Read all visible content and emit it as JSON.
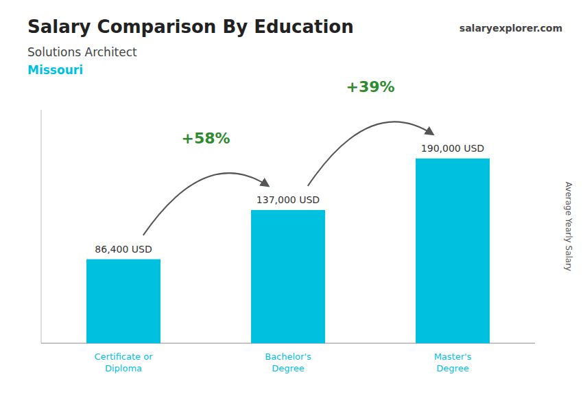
{
  "chart_data": {
    "type": "bar",
    "title": "Salary Comparison By Education",
    "subtitle": [
      "Solutions Architect",
      "Missouri"
    ],
    "categories": [
      "Certificate or\nDiploma",
      "Bachelor's\nDegree",
      "Master's\nDegree"
    ],
    "values": [
      86400,
      137000,
      190000
    ],
    "value_labels": [
      "86,400 USD",
      "137,000 USD",
      "190,000 USD"
    ],
    "annotations": [
      "+58%",
      "+39%",
      "salaryexplorer.com"
    ],
    "ylabel": "Average Yearly Salary",
    "color": "#00c0e0",
    "ylim": [
      0,
      240000
    ],
    "data_labels": true,
    "tick_labels": "x",
    "grid": false
  }
}
